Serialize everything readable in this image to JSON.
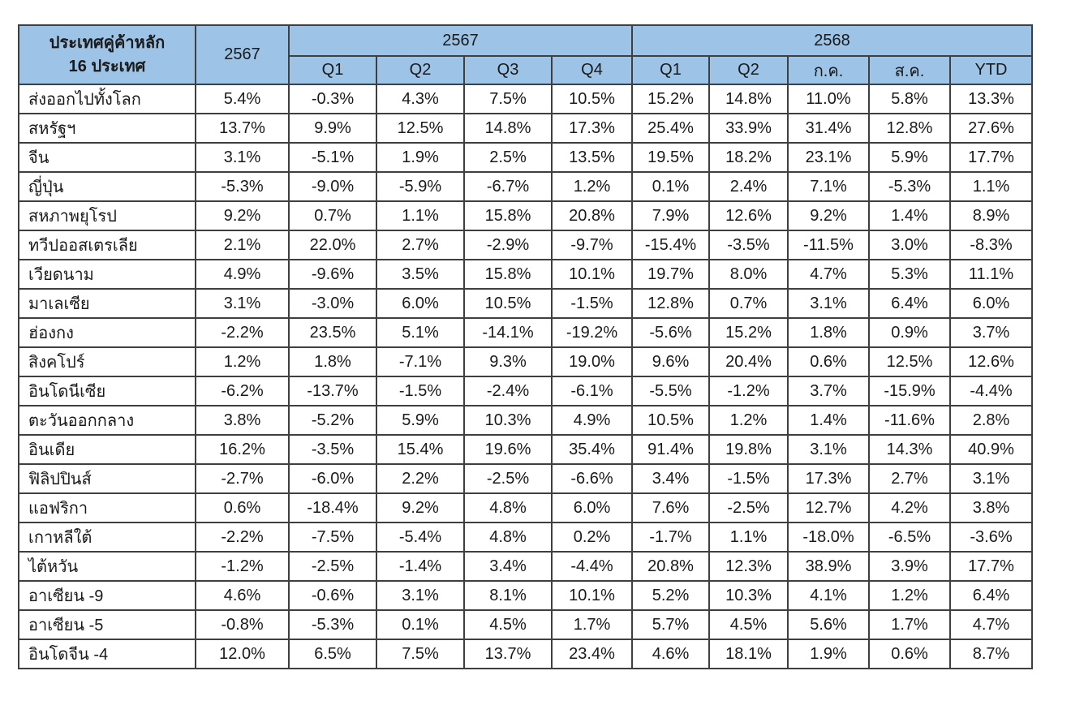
{
  "colors": {
    "header_bg": "#9DC3E6",
    "border": "#3f3f3f",
    "text": "#1a1a1a",
    "row_bg": "#ffffff"
  },
  "table": {
    "header": {
      "country_line1": "ประเทศคู่ค้าหลัก",
      "country_line2": "16 ประเทศ",
      "annual_label": "2567",
      "group_2567": "2567",
      "group_2568": "2568",
      "sub_2567": [
        "Q1",
        "Q2",
        "Q3",
        "Q4"
      ],
      "sub_2568": [
        "Q1",
        "Q2",
        "ก.ค.",
        "ส.ค.",
        "YTD"
      ]
    },
    "rows": [
      {
        "country": "ส่งออกไปทั้งโลก",
        "values": [
          "5.4%",
          "-0.3%",
          "4.3%",
          "7.5%",
          "10.5%",
          "15.2%",
          "14.8%",
          "11.0%",
          "5.8%",
          "13.3%"
        ]
      },
      {
        "country": "สหรัฐฯ",
        "values": [
          "13.7%",
          "9.9%",
          "12.5%",
          "14.8%",
          "17.3%",
          "25.4%",
          "33.9%",
          "31.4%",
          "12.8%",
          "27.6%"
        ]
      },
      {
        "country": "จีน",
        "values": [
          "3.1%",
          "-5.1%",
          "1.9%",
          "2.5%",
          "13.5%",
          "19.5%",
          "18.2%",
          "23.1%",
          "5.9%",
          "17.7%"
        ]
      },
      {
        "country": "ญี่ปุ่น",
        "values": [
          "-5.3%",
          "-9.0%",
          "-5.9%",
          "-6.7%",
          "1.2%",
          "0.1%",
          "2.4%",
          "7.1%",
          "-5.3%",
          "1.1%"
        ]
      },
      {
        "country": "สหภาพยุโรป",
        "values": [
          "9.2%",
          "0.7%",
          "1.1%",
          "15.8%",
          "20.8%",
          "7.9%",
          "12.6%",
          "9.2%",
          "1.4%",
          "8.9%"
        ]
      },
      {
        "country": "ทวีปออสเตรเลีย",
        "values": [
          "2.1%",
          "22.0%",
          "2.7%",
          "-2.9%",
          "-9.7%",
          "-15.4%",
          "-3.5%",
          "-11.5%",
          "3.0%",
          "-8.3%"
        ]
      },
      {
        "country": "เวียดนาม",
        "values": [
          "4.9%",
          "-9.6%",
          "3.5%",
          "15.8%",
          "10.1%",
          "19.7%",
          "8.0%",
          "4.7%",
          "5.3%",
          "11.1%"
        ]
      },
      {
        "country": "มาเลเซีย",
        "values": [
          "3.1%",
          "-3.0%",
          "6.0%",
          "10.5%",
          "-1.5%",
          "12.8%",
          "0.7%",
          "3.1%",
          "6.4%",
          "6.0%"
        ]
      },
      {
        "country": "ฮ่องกง",
        "values": [
          "-2.2%",
          "23.5%",
          "5.1%",
          "-14.1%",
          "-19.2%",
          "-5.6%",
          "15.2%",
          "1.8%",
          "0.9%",
          "3.7%"
        ]
      },
      {
        "country": "สิงคโปร์",
        "values": [
          "1.2%",
          "1.8%",
          "-7.1%",
          "9.3%",
          "19.0%",
          "9.6%",
          "20.4%",
          "0.6%",
          "12.5%",
          "12.6%"
        ]
      },
      {
        "country": "อินโดนีเซีย",
        "values": [
          "-6.2%",
          "-13.7%",
          "-1.5%",
          "-2.4%",
          "-6.1%",
          "-5.5%",
          "-1.2%",
          "3.7%",
          "-15.9%",
          "-4.4%"
        ]
      },
      {
        "country": "ตะวันออกกลาง",
        "values": [
          "3.8%",
          "-5.2%",
          "5.9%",
          "10.3%",
          "4.9%",
          "10.5%",
          "1.2%",
          "1.4%",
          "-11.6%",
          "2.8%"
        ]
      },
      {
        "country": "อินเดีย",
        "values": [
          "16.2%",
          "-3.5%",
          "15.4%",
          "19.6%",
          "35.4%",
          "91.4%",
          "19.8%",
          "3.1%",
          "14.3%",
          "40.9%"
        ]
      },
      {
        "country": "ฟิลิปปินส์",
        "values": [
          "-2.7%",
          "-6.0%",
          "2.2%",
          "-2.5%",
          "-6.6%",
          "3.4%",
          "-1.5%",
          "17.3%",
          "2.7%",
          "3.1%"
        ]
      },
      {
        "country": "แอฟริกา",
        "values": [
          "0.6%",
          "-18.4%",
          "9.2%",
          "4.8%",
          "6.0%",
          "7.6%",
          "-2.5%",
          "12.7%",
          "4.2%",
          "3.8%"
        ]
      },
      {
        "country": "เกาหลีใต้",
        "values": [
          "-2.2%",
          "-7.5%",
          "-5.4%",
          "4.8%",
          "0.2%",
          "-1.7%",
          "1.1%",
          "-18.0%",
          "-6.5%",
          "-3.6%"
        ]
      },
      {
        "country": "ไต้หวัน",
        "values": [
          "-1.2%",
          "-2.5%",
          "-1.4%",
          "3.4%",
          "-4.4%",
          "20.8%",
          "12.3%",
          "38.9%",
          "3.9%",
          "17.7%"
        ]
      },
      {
        "country": "อาเซียน -9",
        "values": [
          "4.6%",
          "-0.6%",
          "3.1%",
          "8.1%",
          "10.1%",
          "5.2%",
          "10.3%",
          "4.1%",
          "1.2%",
          "6.4%"
        ]
      },
      {
        "country": "อาเซียน -5",
        "values": [
          "-0.8%",
          "-5.3%",
          "0.1%",
          "4.5%",
          "1.7%",
          "5.7%",
          "4.5%",
          "5.6%",
          "1.7%",
          "4.7%"
        ]
      },
      {
        "country": "อินโดจีน -4",
        "values": [
          "12.0%",
          "6.5%",
          "7.5%",
          "13.7%",
          "23.4%",
          "4.6%",
          "18.1%",
          "1.9%",
          "0.6%",
          "8.7%"
        ]
      }
    ]
  }
}
